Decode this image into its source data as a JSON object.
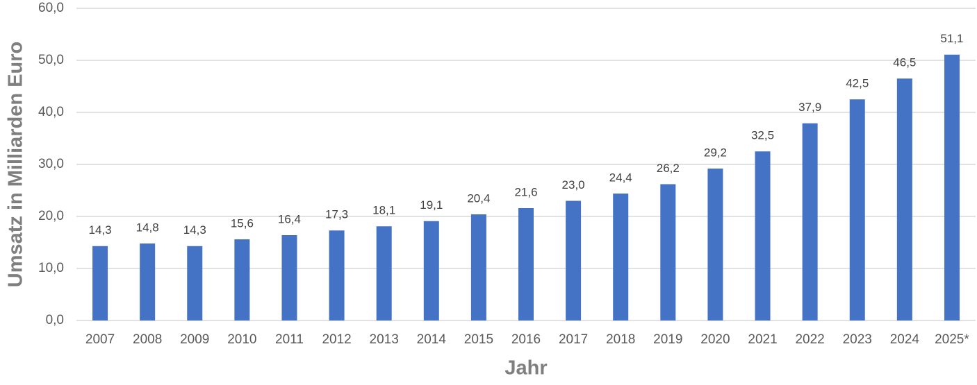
{
  "chart_data": {
    "type": "bar",
    "x_axis_label": "Jahr",
    "y_axis_label": "Umsatz in Milliarden Euro",
    "categories": [
      "2007",
      "2008",
      "2009",
      "2010",
      "2011",
      "2012",
      "2013",
      "2014",
      "2015",
      "2016",
      "2017",
      "2018",
      "2019",
      "2020",
      "2021",
      "2022",
      "2023",
      "2024",
      "2025*"
    ],
    "values": [
      14.3,
      14.8,
      14.3,
      15.6,
      16.4,
      17.3,
      18.1,
      19.1,
      20.4,
      21.6,
      23.0,
      24.4,
      26.2,
      29.2,
      32.5,
      37.9,
      42.5,
      46.5,
      51.1
    ],
    "value_labels": [
      "14,3",
      "14,8",
      "14,3",
      "15,6",
      "16,4",
      "17,3",
      "18,1",
      "19,1",
      "20,4",
      "21,6",
      "23,0",
      "24,4",
      "26,2",
      "29,2",
      "32,5",
      "37,9",
      "42,5",
      "46,5",
      "51,1"
    ],
    "color": "#4472c4",
    "ylim": [
      0,
      60
    ],
    "yticks": [
      {
        "value": 0,
        "label": "0,0"
      },
      {
        "value": 10,
        "label": "10,0"
      },
      {
        "value": 20,
        "label": "20,0"
      },
      {
        "value": 30,
        "label": "30,0"
      },
      {
        "value": 40,
        "label": "40,0"
      },
      {
        "value": 50,
        "label": "50,0"
      },
      {
        "value": 60,
        "label": "60,0"
      }
    ],
    "grid": true
  }
}
